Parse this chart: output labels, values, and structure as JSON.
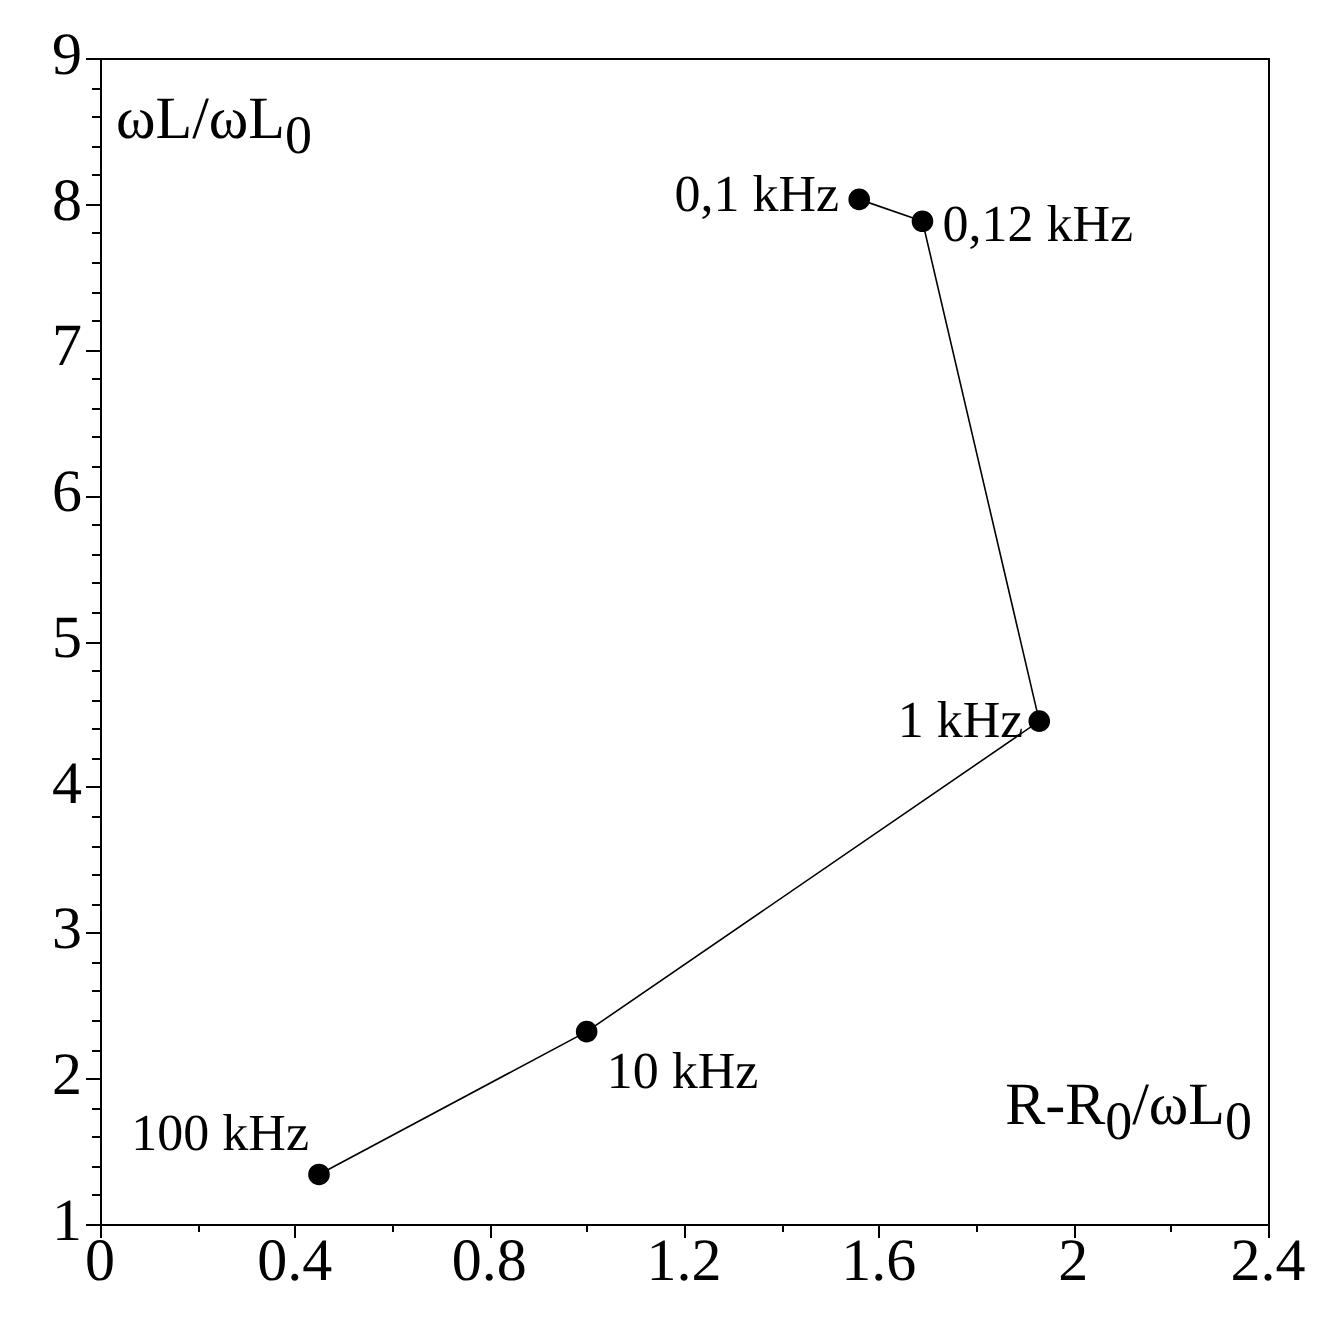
{
  "chart_data": {
    "type": "line",
    "xlabel": "R-R$_{0}$/ωL$_{0}$",
    "ylabel": "ωL/ωL$_{0}$",
    "x": [
      0.45,
      1.0,
      1.93,
      1.69,
      1.56
    ],
    "series": [
      {
        "color": "#000000",
        "values": [
          1.34,
          2.32,
          4.45,
          7.88,
          8.03
        ]
      }
    ],
    "xlim": [
      0,
      2.4
    ],
    "ylim": [
      1,
      9
    ],
    "xticks": [
      0,
      {
        "value": 0.2,
        "label": null
      },
      0.4,
      {
        "value": 0.6,
        "label": null
      },
      0.8,
      {
        "value": 1.0,
        "label": null
      },
      1.2,
      {
        "value": 1.4,
        "label": null
      },
      1.6,
      {
        "value": 1.8,
        "label": null
      },
      2,
      {
        "value": 2.2,
        "label": null
      },
      2.4
    ],
    "yticks": [
      1,
      {
        "value": 1.2,
        "label": null
      },
      {
        "value": 1.4,
        "label": null
      },
      {
        "value": 1.6,
        "label": null
      },
      {
        "value": 1.8,
        "label": null
      },
      2,
      {
        "value": 2.2,
        "label": null
      },
      {
        "value": 2.4,
        "label": null
      },
      {
        "value": 2.6,
        "label": null
      },
      {
        "value": 2.8,
        "label": null
      },
      3,
      {
        "value": 3.2,
        "label": null
      },
      {
        "value": 3.4,
        "label": null
      },
      {
        "value": 3.6,
        "label": null
      },
      {
        "value": 3.8,
        "label": null
      },
      4,
      {
        "value": 4.2,
        "label": null
      },
      {
        "value": 4.4,
        "label": null
      },
      {
        "value": 4.6,
        "label": null
      },
      {
        "value": 4.8,
        "label": null
      },
      5,
      {
        "value": 5.2,
        "label": null
      },
      {
        "value": 5.4,
        "label": null
      },
      {
        "value": 5.6,
        "label": null
      },
      {
        "value": 5.8,
        "label": null
      },
      6,
      {
        "value": 6.2,
        "label": null
      },
      {
        "value": 6.4,
        "label": null
      },
      {
        "value": 6.6,
        "label": null
      },
      {
        "value": 6.8,
        "label": null
      },
      7,
      {
        "value": 7.2,
        "label": null
      },
      {
        "value": 7.4,
        "label": null
      },
      {
        "value": 7.6,
        "label": null
      },
      {
        "value": 7.8,
        "label": null
      },
      8,
      {
        "value": 8.2,
        "label": null
      },
      {
        "value": 8.4,
        "label": null
      },
      {
        "value": 8.6,
        "label": null
      },
      {
        "value": 8.8,
        "label": null
      },
      9
    ],
    "annotations": [
      {
        "text": "100 kHz",
        "x": 0.45,
        "y": 1.34
      },
      {
        "text": "10 kHz",
        "x": 1.0,
        "y": 2.32
      },
      {
        "text": "1 kHz",
        "x": 1.93,
        "y": 4.45
      },
      {
        "text": "0,12 kHz",
        "x": 1.69,
        "y": 7.88
      },
      {
        "text": "0,1 kHz",
        "x": 1.56,
        "y": 8.03
      }
    ],
    "grid": false,
    "legend": false,
    "marker": "circle",
    "line_style": "solid"
  }
}
